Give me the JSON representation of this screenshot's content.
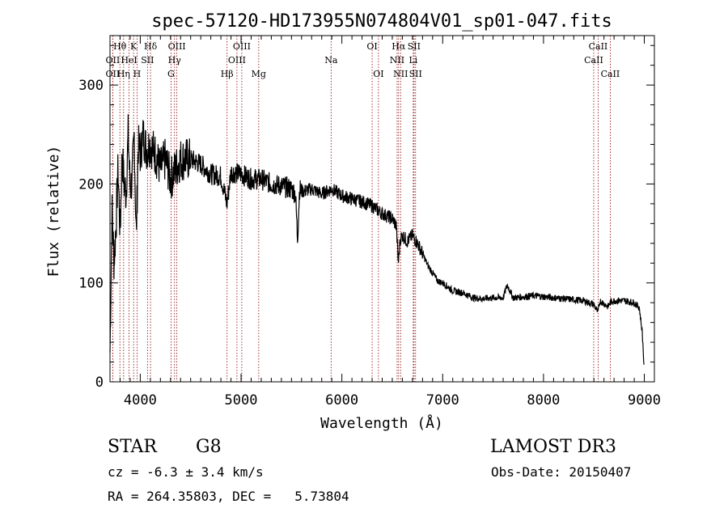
{
  "chart_data": {
    "type": "line",
    "title": "spec-57120-HD173955N074804V01_sp01-047.fits",
    "xlabel": "Wavelength (Å)",
    "ylabel": "Flux (relative)",
    "xlim": [
      3700,
      9100
    ],
    "ylim": [
      0,
      350
    ],
    "xticks": [
      4000,
      5000,
      6000,
      7000,
      8000,
      9000
    ],
    "yticks": [
      0,
      100,
      200,
      300
    ],
    "series": [
      {
        "name": "flux",
        "x": [
          3700,
          3720,
          3740,
          3760,
          3780,
          3800,
          3820,
          3840,
          3860,
          3880,
          3900,
          3920,
          3940,
          3960,
          3980,
          4000,
          4030,
          4060,
          4100,
          4150,
          4200,
          4250,
          4300,
          4350,
          4400,
          4500,
          4600,
          4700,
          4800,
          4860,
          4900,
          5000,
          5100,
          5200,
          5300,
          5400,
          5500,
          5540,
          5560,
          5580,
          5600,
          5700,
          5800,
          5900,
          6000,
          6100,
          6200,
          6300,
          6400,
          6500,
          6540,
          6560,
          6580,
          6600,
          6650,
          6700,
          6750,
          6800,
          6850,
          6900,
          6950,
          7000,
          7100,
          7200,
          7300,
          7400,
          7500,
          7600,
          7640,
          7700,
          7800,
          7900,
          8000,
          8100,
          8200,
          8300,
          8400,
          8500,
          8540,
          8560,
          8600,
          8640,
          8660,
          8700,
          8800,
          8900,
          8950,
          8980,
          9000
        ],
        "y": [
          30,
          175,
          120,
          160,
          215,
          150,
          230,
          200,
          190,
          250,
          195,
          205,
          250,
          145,
          240,
          230,
          250,
          235,
          240,
          230,
          215,
          225,
          205,
          215,
          225,
          225,
          220,
          210,
          208,
          180,
          212,
          210,
          205,
          205,
          200,
          198,
          195,
          190,
          145,
          195,
          192,
          195,
          190,
          195,
          188,
          185,
          182,
          178,
          170,
          165,
          158,
          120,
          145,
          148,
          142,
          148,
          140,
          130,
          118,
          110,
          102,
          100,
          92,
          90,
          85,
          84,
          85,
          85,
          98,
          85,
          86,
          87,
          86,
          85,
          84,
          83,
          82,
          78,
          70,
          82,
          79,
          76,
          80,
          82,
          82,
          80,
          75,
          50,
          10
        ]
      }
    ],
    "line_annotations": [
      {
        "label": "OII",
        "wavelength": 3727,
        "row": 2
      },
      {
        "label": "Hθ",
        "wavelength": 3798,
        "row": 0
      },
      {
        "label": "OII",
        "wavelength": 3727,
        "row": 1
      },
      {
        "label": "Hη",
        "wavelength": 3835,
        "row": 2
      },
      {
        "label": "K",
        "wavelength": 3934,
        "row": 0
      },
      {
        "label": "HeI",
        "wavelength": 3889,
        "row": 1
      },
      {
        "label": "H",
        "wavelength": 3968,
        "row": 2
      },
      {
        "label": "SII",
        "wavelength": 4072,
        "row": 1
      },
      {
        "label": "Hδ",
        "wavelength": 4102,
        "row": 0
      },
      {
        "label": "OIII",
        "wavelength": 4363,
        "row": 0
      },
      {
        "label": "Hγ",
        "wavelength": 4340,
        "row": 1
      },
      {
        "label": "G",
        "wavelength": 4305,
        "row": 2
      },
      {
        "label": "Hβ",
        "wavelength": 4861,
        "row": 2
      },
      {
        "label": "OIII",
        "wavelength": 5007,
        "row": 0
      },
      {
        "label": "OIII",
        "wavelength": 4959,
        "row": 1
      },
      {
        "label": "Mg",
        "wavelength": 5175,
        "row": 2
      },
      {
        "label": "Na",
        "wavelength": 5893,
        "row": 1
      },
      {
        "label": "OI",
        "wavelength": 6300,
        "row": 0
      },
      {
        "label": "OI",
        "wavelength": 6363,
        "row": 2
      },
      {
        "label": "Hα",
        "wavelength": 6563,
        "row": 0
      },
      {
        "label": "NII",
        "wavelength": 6548,
        "row": 1
      },
      {
        "label": "NII",
        "wavelength": 6583,
        "row": 2
      },
      {
        "label": "SII",
        "wavelength": 6716,
        "row": 0
      },
      {
        "label": "Li",
        "wavelength": 6708,
        "row": 1
      },
      {
        "label": "SII",
        "wavelength": 6731,
        "row": 2
      },
      {
        "label": "CaII",
        "wavelength": 8542,
        "row": 0
      },
      {
        "label": "CaII",
        "wavelength": 8498,
        "row": 1
      },
      {
        "label": "CaII",
        "wavelength": 8662,
        "row": 2
      }
    ],
    "line_color": "#8b0000"
  },
  "info": {
    "obj_class": "STAR",
    "subclass": "G8",
    "survey": "LAMOST DR3",
    "cz": "cz = -6.3 ± 3.4 km/s",
    "obs_date": "Obs-Date: 20150407",
    "coords": "RA = 264.35803, DEC =   5.73804"
  }
}
